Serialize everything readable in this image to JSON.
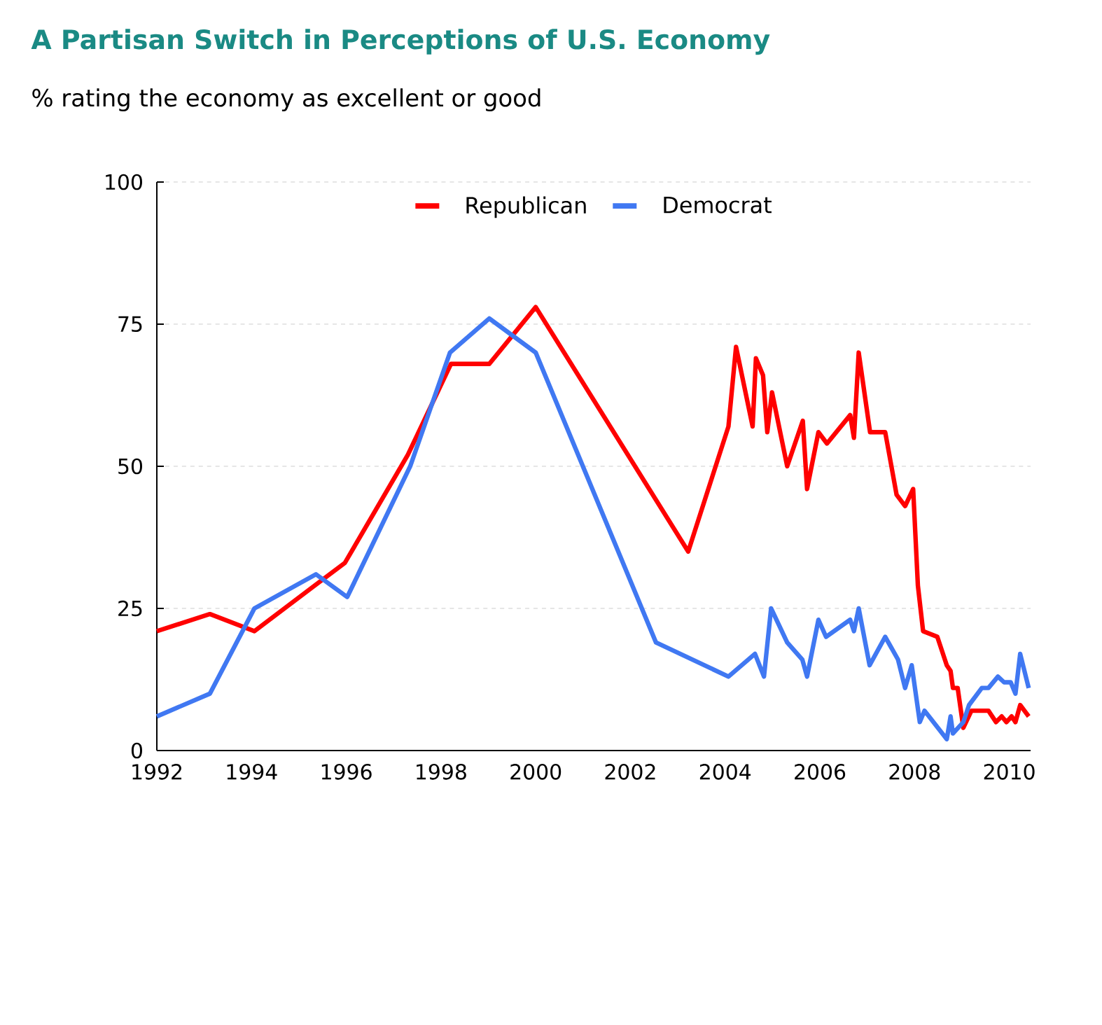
{
  "chart_data": {
    "type": "line",
    "title": "A Partisan Switch in Perceptions of U.S. Economy",
    "subtitle": "% rating the economy as excellent or good",
    "xlim": [
      1992,
      2010.45
    ],
    "xticks": [
      1992,
      1994,
      1996,
      1998,
      2000,
      2002,
      2004,
      2006,
      2008,
      2010
    ],
    "ylim": [
      0,
      100
    ],
    "yticks": [
      0,
      25,
      50,
      75,
      100
    ],
    "grid": "y",
    "legend": "top",
    "line_style": "solid",
    "series": [
      {
        "name": "Republican",
        "color": "#ff0000",
        "x": [
          1992.0,
          1993.12,
          1994.06,
          1995.33,
          1995.97,
          1997.3,
          1998.21,
          1999.02,
          2000.0,
          2003.22,
          2004.07,
          2004.23,
          2004.58,
          2004.65,
          2004.8,
          2004.89,
          2004.99,
          2005.31,
          2005.64,
          2005.73,
          2005.97,
          2006.15,
          2006.64,
          2006.72,
          2006.82,
          2007.06,
          2007.38,
          2007.62,
          2007.8,
          2007.97,
          2008.07,
          2008.18,
          2008.48,
          2008.68,
          2008.76,
          2008.81,
          2008.91,
          2009.03,
          2009.2,
          2009.42,
          2009.56,
          2009.72,
          2009.84,
          2009.94,
          2010.05,
          2010.13,
          2010.23,
          2010.41
        ],
        "values": [
          21,
          24,
          21,
          29,
          33,
          52,
          68,
          68,
          78,
          35,
          57,
          71,
          57,
          69,
          66,
          56,
          63,
          50,
          58,
          46,
          56,
          54,
          59,
          55,
          70,
          56,
          56,
          45,
          43,
          46,
          29,
          21,
          20,
          15,
          14,
          11,
          11,
          4,
          7,
          7,
          7,
          5,
          6,
          5,
          6,
          5,
          8,
          6
        ]
      },
      {
        "name": "Democrat",
        "color": "#4078f2",
        "x": [
          1992.0,
          1993.12,
          1994.06,
          1995.36,
          1996.02,
          1997.35,
          1998.19,
          1999.02,
          2000.0,
          2002.54,
          2004.07,
          2004.63,
          2004.82,
          2004.97,
          2005.31,
          2005.63,
          2005.73,
          2005.97,
          2006.13,
          2006.64,
          2006.72,
          2006.82,
          2007.05,
          2007.38,
          2007.65,
          2007.8,
          2007.94,
          2008.11,
          2008.21,
          2008.68,
          2008.76,
          2008.81,
          2009.03,
          2009.15,
          2009.42,
          2009.56,
          2009.76,
          2009.89,
          2010.03,
          2010.13,
          2010.23,
          2010.41
        ],
        "values": [
          6,
          10,
          25,
          31,
          27,
          50,
          70,
          76,
          70,
          19,
          13,
          17,
          13,
          25,
          19,
          16,
          13,
          23,
          20,
          23,
          21,
          25,
          15,
          20,
          16,
          11,
          15,
          5,
          7,
          2,
          6,
          3,
          5,
          8,
          11,
          11,
          13,
          12,
          12,
          10,
          17,
          11
        ]
      }
    ]
  }
}
